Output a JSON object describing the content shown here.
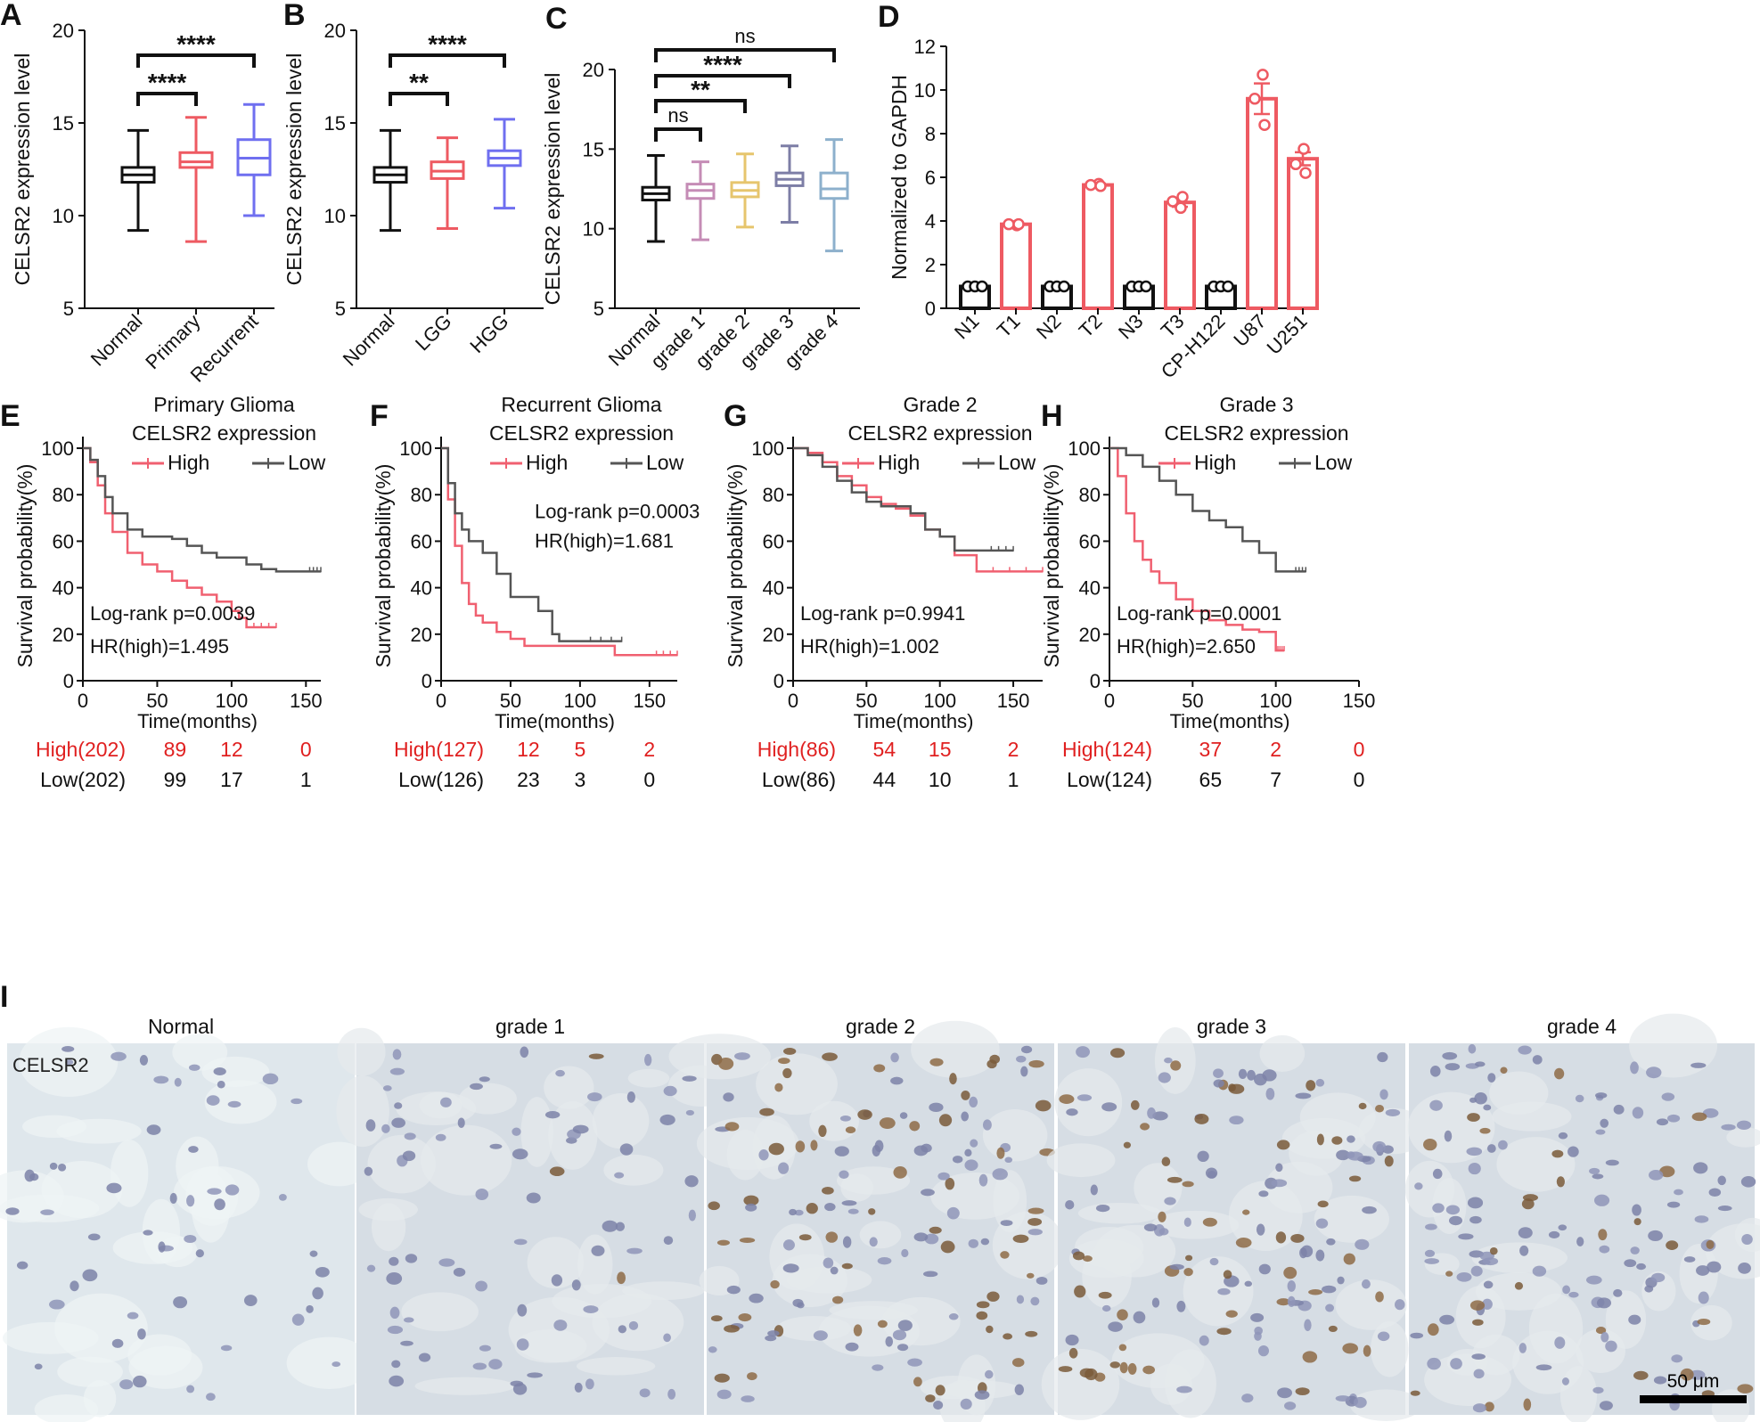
{
  "colors": {
    "black": "#111111",
    "red": "#ee5a62",
    "blue": "#6f6ff0",
    "pink": "#c58cb6",
    "yellow": "#e6c56d",
    "slate": "#7d7ea6",
    "lightblue": "#8db0cc",
    "km_high": "#f06070",
    "km_low": "#555555",
    "risk_red": "#e02020"
  },
  "chart_data": [
    {
      "panel": "A",
      "type": "box",
      "ylabel": "CELSR2 expression level",
      "ylim": [
        5,
        20
      ],
      "yticks": [
        5,
        10,
        15,
        20
      ],
      "categories": [
        "Normal",
        "Primary",
        "Recurrent"
      ],
      "boxes": [
        {
          "min": 9.2,
          "q1": 11.8,
          "median": 12.2,
          "q3": 12.6,
          "max": 14.6,
          "color": "black"
        },
        {
          "min": 8.6,
          "q1": 12.6,
          "median": 12.9,
          "q3": 13.4,
          "max": 15.3,
          "color": "red"
        },
        {
          "min": 10.0,
          "q1": 12.2,
          "median": 13.1,
          "q3": 14.1,
          "max": 16.0,
          "color": "blue"
        }
      ],
      "significance": [
        {
          "from": 0,
          "to": 1,
          "label": "****"
        },
        {
          "from": 0,
          "to": 2,
          "label": "****"
        }
      ]
    },
    {
      "panel": "B",
      "type": "box",
      "ylabel": "CELSR2 expression level",
      "ylim": [
        5,
        20
      ],
      "yticks": [
        5,
        10,
        15,
        20
      ],
      "categories": [
        "Normal",
        "LGG",
        "HGG"
      ],
      "boxes": [
        {
          "min": 9.2,
          "q1": 11.8,
          "median": 12.2,
          "q3": 12.6,
          "max": 14.6,
          "color": "black"
        },
        {
          "min": 9.3,
          "q1": 12.0,
          "median": 12.4,
          "q3": 12.9,
          "max": 14.2,
          "color": "red"
        },
        {
          "min": 10.4,
          "q1": 12.7,
          "median": 13.1,
          "q3": 13.5,
          "max": 15.2,
          "color": "blue"
        }
      ],
      "significance": [
        {
          "from": 0,
          "to": 1,
          "label": "**"
        },
        {
          "from": 0,
          "to": 2,
          "label": "****"
        }
      ]
    },
    {
      "panel": "C",
      "type": "box",
      "ylabel": "CELSR2 expression level",
      "ylim": [
        5,
        20
      ],
      "yticks": [
        5,
        10,
        15,
        20
      ],
      "categories": [
        "Normal",
        "grade 1",
        "grade 2",
        "grade 3",
        "grade 4"
      ],
      "boxes": [
        {
          "min": 9.2,
          "q1": 11.8,
          "median": 12.2,
          "q3": 12.6,
          "max": 14.6,
          "color": "black"
        },
        {
          "min": 9.3,
          "q1": 11.9,
          "median": 12.4,
          "q3": 12.8,
          "max": 14.2,
          "color": "pink"
        },
        {
          "min": 10.1,
          "q1": 12.0,
          "median": 12.4,
          "q3": 12.9,
          "max": 14.7,
          "color": "yellow"
        },
        {
          "min": 10.4,
          "q1": 12.7,
          "median": 13.1,
          "q3": 13.5,
          "max": 15.2,
          "color": "slate"
        },
        {
          "min": 8.6,
          "q1": 11.9,
          "median": 12.5,
          "q3": 13.5,
          "max": 15.6,
          "color": "lightblue"
        }
      ],
      "significance": [
        {
          "from": 0,
          "to": 1,
          "label": "ns"
        },
        {
          "from": 0,
          "to": 2,
          "label": "**"
        },
        {
          "from": 0,
          "to": 3,
          "label": "****"
        },
        {
          "from": 0,
          "to": 4,
          "label": "ns"
        }
      ]
    },
    {
      "panel": "D",
      "type": "bar",
      "ylabel": "Normalized to GAPDH",
      "ylim": [
        0,
        12
      ],
      "yticks": [
        0,
        2,
        4,
        6,
        8,
        10,
        12
      ],
      "categories": [
        "N1",
        "T1",
        "N2",
        "T2",
        "N3",
        "T3",
        "CP-H122",
        "U87",
        "U251"
      ],
      "values": [
        1.0,
        3.85,
        1.0,
        5.65,
        1.0,
        4.85,
        1.0,
        9.6,
        6.85
      ],
      "errors": [
        0.02,
        0.05,
        0.02,
        0.06,
        0.02,
        0.2,
        0.02,
        0.7,
        0.3
      ],
      "colors": [
        "black",
        "red",
        "black",
        "red",
        "black",
        "red",
        "black",
        "red",
        "red"
      ],
      "points": [
        [
          1.0,
          1.0,
          1.0
        ],
        [
          3.8,
          3.85,
          3.85
        ],
        [
          1.0,
          1.0,
          1.0
        ],
        [
          5.7,
          5.65,
          5.6
        ],
        [
          1.0,
          1.0,
          1.0
        ],
        [
          4.6,
          4.9,
          5.1
        ],
        [
          1.0,
          1.0,
          1.0
        ],
        [
          10.7,
          9.6,
          8.4
        ],
        [
          7.3,
          6.6,
          6.2
        ]
      ]
    },
    {
      "panel": "E",
      "type": "line",
      "subtype": "kaplan-meier",
      "title": "Primary Glioma",
      "legend_title": "CELSR2 expression",
      "xlabel": "Time(months)",
      "ylabel": "Survival probability(%)",
      "xlim": [
        0,
        160
      ],
      "xticks": [
        0,
        50,
        100,
        150
      ],
      "ylim": [
        0,
        105
      ],
      "yticks": [
        0,
        20,
        40,
        60,
        80,
        100
      ],
      "stats": [
        "Log-rank p=0.0039",
        "HR(high)=1.495"
      ],
      "series": [
        {
          "name": "High",
          "color": "km_high",
          "x": [
            0,
            5,
            10,
            15,
            20,
            30,
            40,
            50,
            60,
            70,
            80,
            90,
            100,
            105,
            110,
            130
          ],
          "y": [
            100,
            94,
            84,
            72,
            64,
            55,
            50,
            47,
            43,
            40,
            37,
            34,
            30,
            27,
            23,
            23
          ]
        },
        {
          "name": "Low",
          "color": "km_low",
          "x": [
            0,
            5,
            10,
            15,
            20,
            30,
            40,
            50,
            60,
            70,
            80,
            90,
            100,
            110,
            120,
            130,
            140,
            150,
            160
          ],
          "y": [
            100,
            95,
            88,
            79,
            72,
            65,
            62,
            62,
            61,
            58,
            55,
            53,
            53,
            50,
            48,
            47,
            47,
            47,
            47
          ]
        }
      ],
      "risk_table": {
        "high": [
          "High(202)",
          "89",
          "12",
          "0"
        ],
        "low": [
          "Low(202)",
          "99",
          "17",
          "1"
        ]
      }
    },
    {
      "panel": "F",
      "type": "line",
      "subtype": "kaplan-meier",
      "title": "Recurrent Glioma",
      "legend_title": "CELSR2 expression",
      "xlabel": "Time(months)",
      "ylabel": "Survival probability(%)",
      "xlim": [
        0,
        170
      ],
      "xticks": [
        0,
        50,
        100,
        150
      ],
      "ylim": [
        0,
        105
      ],
      "yticks": [
        0,
        20,
        40,
        60,
        80,
        100
      ],
      "stats": [
        "Log-rank p=0.0003",
        "HR(high)=1.681"
      ],
      "series": [
        {
          "name": "High",
          "color": "km_high",
          "x": [
            0,
            5,
            10,
            15,
            20,
            25,
            30,
            40,
            50,
            60,
            80,
            100,
            120,
            125,
            150,
            170
          ],
          "y": [
            100,
            78,
            58,
            42,
            33,
            28,
            25,
            21,
            18,
            15,
            15,
            15,
            15,
            11,
            11,
            11
          ]
        },
        {
          "name": "Low",
          "color": "km_low",
          "x": [
            0,
            5,
            10,
            15,
            20,
            30,
            40,
            50,
            60,
            70,
            80,
            85,
            100,
            130
          ],
          "y": [
            100,
            85,
            72,
            65,
            60,
            55,
            46,
            36,
            36,
            30,
            20,
            17,
            17,
            17
          ]
        }
      ],
      "risk_table": {
        "high": [
          "High(127)",
          "12",
          "5",
          "2"
        ],
        "low": [
          "Low(126)",
          "23",
          "3",
          "0"
        ]
      }
    },
    {
      "panel": "G",
      "type": "line",
      "subtype": "kaplan-meier",
      "title": "Grade 2",
      "legend_title": "CELSR2 expression",
      "xlabel": "Time(months)",
      "ylabel": "Survival probability(%)",
      "xlim": [
        0,
        170
      ],
      "xticks": [
        0,
        50,
        100,
        150
      ],
      "ylim": [
        0,
        105
      ],
      "yticks": [
        0,
        20,
        40,
        60,
        80,
        100
      ],
      "stats": [
        "Log-rank p=0.9941",
        "HR(high)=1.002"
      ],
      "series": [
        {
          "name": "High",
          "color": "km_high",
          "x": [
            0,
            10,
            20,
            30,
            40,
            50,
            60,
            70,
            80,
            90,
            100,
            110,
            120,
            125,
            170
          ],
          "y": [
            100,
            98,
            94,
            88,
            84,
            79,
            76,
            74,
            71,
            65,
            62,
            54,
            54,
            47,
            47
          ]
        },
        {
          "name": "Low",
          "color": "km_low",
          "x": [
            0,
            10,
            20,
            30,
            40,
            50,
            60,
            70,
            80,
            90,
            100,
            110,
            120,
            130,
            150
          ],
          "y": [
            100,
            97,
            92,
            86,
            81,
            77,
            75,
            75,
            72,
            65,
            62,
            56,
            56,
            56,
            56
          ]
        }
      ],
      "risk_table": {
        "high": [
          "High(86)",
          "54",
          "15",
          "2"
        ],
        "low": [
          "Low(86)",
          "44",
          "10",
          "1"
        ]
      }
    },
    {
      "panel": "H",
      "type": "line",
      "subtype": "kaplan-meier",
      "title": "Grade 3",
      "legend_title": "CELSR2 expression",
      "xlabel": "Time(months)",
      "ylabel": "Survival probability(%)",
      "xlim": [
        0,
        150
      ],
      "xticks": [
        0,
        50,
        100,
        150
      ],
      "ylim": [
        0,
        105
      ],
      "yticks": [
        0,
        20,
        40,
        60,
        80,
        100
      ],
      "stats": [
        "Log-rank p=0.0001",
        "HR(high)=2.650"
      ],
      "series": [
        {
          "name": "High",
          "color": "km_high",
          "x": [
            0,
            5,
            10,
            15,
            20,
            25,
            30,
            40,
            50,
            60,
            70,
            80,
            90,
            100,
            105
          ],
          "y": [
            100,
            88,
            72,
            60,
            52,
            47,
            42,
            35,
            30,
            26,
            24,
            22,
            21,
            13,
            13
          ]
        },
        {
          "name": "Low",
          "color": "km_low",
          "x": [
            0,
            10,
            20,
            30,
            40,
            50,
            60,
            70,
            80,
            90,
            100,
            110,
            118
          ],
          "y": [
            100,
            97,
            92,
            86,
            80,
            73,
            69,
            66,
            60,
            55,
            47,
            47,
            47
          ]
        }
      ],
      "risk_table": {
        "high": [
          "High(124)",
          "37",
          "2",
          "0"
        ],
        "low": [
          "Low(124)",
          "65",
          "7",
          "0"
        ]
      }
    }
  ],
  "panel_labels": [
    "A",
    "B",
    "C",
    "D",
    "E",
    "F",
    "G",
    "H",
    "I"
  ],
  "ihc": {
    "stain_label": "CELSR2",
    "scale_bar": "50 μm",
    "titles": [
      "Normal",
      "grade 1",
      "grade 2",
      "grade 3",
      "grade 4"
    ],
    "staining_level": [
      0,
      0.05,
      0.85,
      0.65,
      0.35
    ]
  }
}
